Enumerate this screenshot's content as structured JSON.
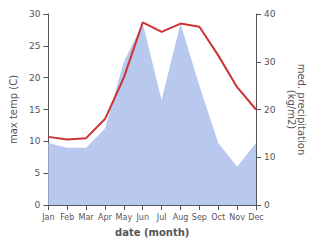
{
  "chart_data": {
    "type": "line",
    "xlabel": "date (month)",
    "ylabel": "max temp (C)",
    "y2label": "med. precipitation\n(kg/m2)",
    "categories": [
      "Jan",
      "Feb",
      "Mar",
      "Apr",
      "May",
      "Jun",
      "Jul",
      "Aug",
      "Sep",
      "Oct",
      "Nov",
      "Dec"
    ],
    "series": [
      {
        "type": "area",
        "axis": "y2",
        "color": "#b8c8ee",
        "values": [
          13,
          12,
          12,
          16,
          30,
          38,
          22,
          38,
          25,
          13,
          8,
          13
        ]
      },
      {
        "type": "line",
        "color": "#cc3333",
        "values": [
          10.7,
          10.3,
          10.5,
          13.5,
          20.0,
          28.7,
          27.2,
          28.5,
          28.0,
          23.5,
          18.5,
          15.0
        ]
      }
    ],
    "ylim": [
      0,
      30
    ],
    "yticks": [
      0,
      5,
      10,
      15,
      20,
      25,
      30
    ],
    "y2lim": [
      0,
      40
    ],
    "y2ticks": [
      0,
      10,
      20,
      30,
      40
    ],
    "grid": false
  }
}
